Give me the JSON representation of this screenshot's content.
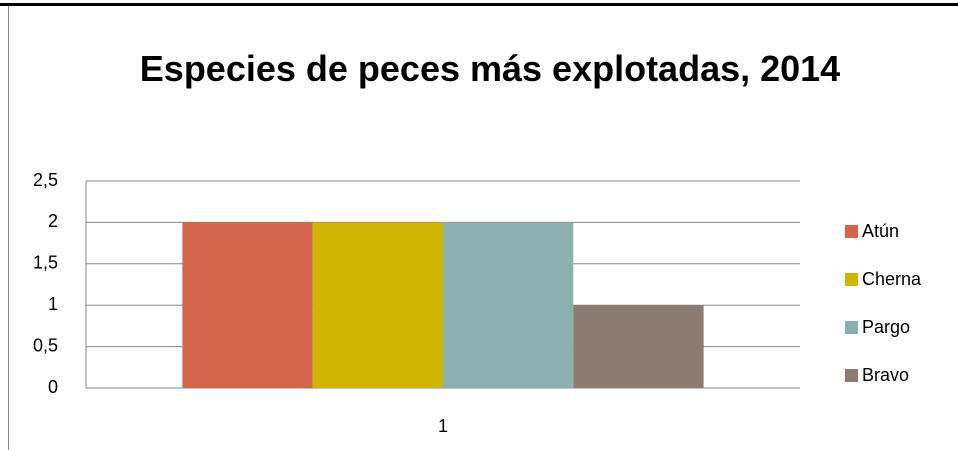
{
  "chart_data": {
    "type": "bar",
    "title": "Especies de peces más explotadas, 2014",
    "categories": [
      "1"
    ],
    "series": [
      {
        "name": "Atún",
        "color": "#d2654a",
        "values": [
          2
        ]
      },
      {
        "name": "Cherna",
        "color": "#cfb500",
        "values": [
          2
        ]
      },
      {
        "name": "Pargo",
        "color": "#8cb0b0",
        "values": [
          2
        ]
      },
      {
        "name": "Bravo",
        "color": "#8b7b70",
        "values": [
          1
        ]
      }
    ],
    "ylim": [
      0,
      2.5
    ],
    "yticks": [
      0,
      {
        "value": 0.5,
        "label": "0,5"
      },
      1,
      {
        "value": 1.5,
        "label": "1,5"
      },
      2,
      {
        "value": 2.5,
        "label": "2,5"
      }
    ],
    "grid": true,
    "legend": "right"
  }
}
